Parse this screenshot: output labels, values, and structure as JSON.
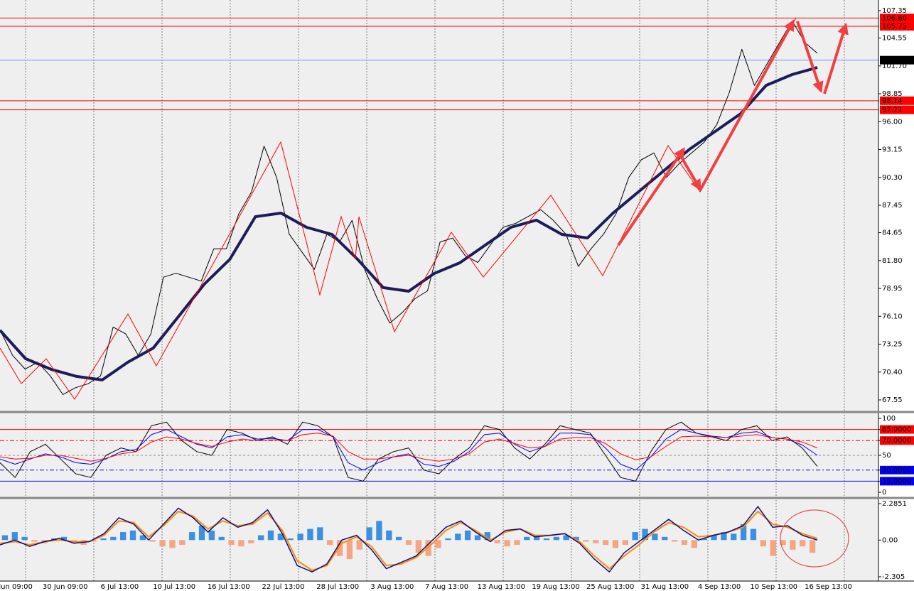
{
  "chart_data": [
    {
      "type": "line",
      "ylim": [
        66.46,
        108.44
      ],
      "yticks": [
        107.35,
        104.55,
        {
          "value": 101.7,
          "label": "101.70"
        },
        98.85,
        {
          "value": 96,
          "label": "96.00"
        },
        93.15,
        {
          "value": 90.3,
          "label": "90.30"
        },
        87.45,
        84.65,
        {
          "value": 81.8,
          "label": "81.80"
        },
        78.95,
        {
          "value": 76.1,
          "label": "76.10"
        },
        73.25,
        {
          "value": 70.4,
          "label": "70.40"
        },
        67.55
      ],
      "levels": [
        {
          "value": 106.6,
          "label": "106.60",
          "color": "#ff0000",
          "box": "#ff0000"
        },
        {
          "value": 105.75,
          "label": "105.75",
          "color": "#ff0000",
          "box": "#ff0000"
        },
        {
          "value": 102.29,
          "label": "102.29",
          "color": "#6b8cff",
          "box": "#000000"
        },
        {
          "value": 98.14,
          "label": "98.14",
          "color": "#ff0000",
          "box": "#ff0000"
        },
        {
          "value": 97.21,
          "label": "97.21",
          "color": "#ff0000",
          "box": "#ff0000"
        }
      ],
      "series": [
        {
          "color": "#000000",
          "width": 1,
          "values": [
            74.7,
            72.1,
            70.7,
            71.4,
            70.0,
            68.1,
            68.8,
            69.2,
            70.0,
            75.0,
            74.3,
            72.1,
            74.3,
            80.1,
            80.5,
            80.1,
            79.7,
            83.0,
            83.0,
            86.6,
            88.8,
            93.5,
            90.3,
            84.5,
            82.7,
            80.9,
            84.5,
            83.7,
            85.9,
            80.9,
            77.9,
            75.4,
            76.5,
            77.9,
            78.7,
            83.7,
            84.1,
            82.3,
            81.6,
            83.4,
            85.2,
            85.6,
            86.3,
            87.0,
            85.9,
            84.5,
            81.2,
            83.0,
            84.5,
            86.6,
            90.3,
            92.1,
            92.8,
            90.3,
            91.7,
            92.8,
            93.9,
            95.7,
            99.0,
            103.4,
            99.7,
            101.9,
            104.1,
            106.3,
            104.1,
            103.0
          ]
        },
        {
          "color": "#1c1c5a",
          "width": 4,
          "values": [
            74.67,
            71.77,
            70.68,
            69.95,
            69.59,
            71.4,
            72.85,
            76.12,
            79.39,
            81.93,
            86.29,
            86.65,
            85.2,
            84.47,
            81.93,
            79.03,
            78.66,
            80.48,
            81.57,
            83.38,
            85.2,
            85.93,
            84.47,
            84.11,
            86.65,
            88.83,
            91.01,
            93.19,
            95.0,
            96.82,
            99.72,
            100.81,
            101.54
          ]
        }
      ]
    },
    {
      "type": "line",
      "ylim": [
        -6.7,
        106.7
      ],
      "yticks": [
        100,
        {
          "value": 85,
          "label": "85.0000"
        },
        {
          "value": 70,
          "label": "70.0000"
        },
        50,
        {
          "value": 30,
          "label": "30.0000"
        },
        {
          "value": 15,
          "label": "15.0000"
        },
        0
      ],
      "levels": [
        {
          "value": 85,
          "color": "#ff0000",
          "dash": "none",
          "box": "#ff0000"
        },
        {
          "value": 70,
          "color": "#ff0000",
          "dash": "6 3 2 3",
          "box": "#ff0000"
        },
        {
          "value": 50,
          "color": "#888888",
          "dash": "3 3"
        },
        {
          "value": 30,
          "color": "#0000ff",
          "dash": "6 3 2 3",
          "box": "#0000ff"
        },
        {
          "value": 15,
          "color": "#0000ff",
          "dash": "none",
          "box": "#0000ff"
        }
      ],
      "series": [
        {
          "color": "#000000",
          "width": 1,
          "values": [
            40,
            20,
            55,
            65,
            45,
            25,
            20,
            50,
            60,
            55,
            90,
            95,
            70,
            55,
            50,
            85,
            80,
            70,
            75,
            65,
            95,
            90,
            75,
            20,
            15,
            45,
            55,
            60,
            30,
            25,
            45,
            60,
            90,
            85,
            60,
            45,
            65,
            90,
            85,
            80,
            50,
            20,
            15,
            55,
            85,
            95,
            80,
            75,
            70,
            85,
            90,
            70,
            75,
            60,
            35
          ]
        },
        {
          "color": "#0000ff",
          "width": 1,
          "values": [
            45,
            38,
            45,
            52,
            48,
            40,
            38,
            45,
            55,
            58,
            78,
            85,
            75,
            65,
            60,
            75,
            78,
            72,
            73,
            70,
            85,
            85,
            75,
            40,
            30,
            40,
            48,
            52,
            38,
            35,
            42,
            55,
            78,
            80,
            65,
            55,
            62,
            80,
            80,
            78,
            60,
            38,
            30,
            48,
            72,
            85,
            80,
            76,
            74,
            80,
            82,
            74,
            72,
            64,
            50
          ]
        },
        {
          "color": "#ff0000",
          "width": 1,
          "values": [
            48,
            45,
            46,
            50,
            50,
            46,
            42,
            46,
            52,
            55,
            68,
            75,
            72,
            66,
            62,
            68,
            72,
            70,
            71,
            70,
            78,
            80,
            76,
            55,
            45,
            45,
            48,
            50,
            45,
            42,
            45,
            52,
            68,
            72,
            66,
            60,
            62,
            72,
            74,
            74,
            66,
            52,
            44,
            48,
            62,
            75,
            76,
            75,
            74,
            76,
            78,
            74,
            72,
            68,
            60
          ]
        }
      ]
    },
    {
      "type": "bar",
      "ylim": [
        -2.574,
        2.599
      ],
      "yticks": [
        2.2851,
        {
          "value": 0,
          "label": "0.00"
        },
        -2.305
      ],
      "color": "#3d8fe0",
      "negative_color": "#f4a582",
      "values": [
        0.3,
        0.5,
        0.2,
        -0.1,
        -0.2,
        0.1,
        0.2,
        -0.2,
        -0.3,
        -0.1,
        0.1,
        0.2,
        0.5,
        0.6,
        0.3,
        -0.1,
        -0.4,
        -0.5,
        -0.3,
        0.5,
        0.9,
        0.6,
        0.2,
        -0.3,
        -0.4,
        -0.2,
        0.3,
        0.6,
        0.4,
        0.1,
        0.4,
        0.7,
        0.8,
        -0.3,
        -1.0,
        -1.2,
        -0.6,
        0.8,
        1.2,
        0.6,
        0.2,
        -0.3,
        -0.8,
        -1.0,
        -0.5,
        0.1,
        0.4,
        0.6,
        0.3,
        0.5,
        -0.2,
        -0.4,
        -0.3,
        0.2,
        0.3,
        0.1,
        0.2,
        0.3,
        0.2,
        -0.1,
        -0.2,
        -0.3,
        -0.5,
        -0.3,
        0.5,
        0.7,
        0.4,
        0.2,
        -0.1,
        -0.3,
        -0.5,
        0.1,
        0.3,
        0.5,
        0.4,
        1.0,
        0.7,
        -0.4,
        -1.0,
        -0.3,
        -0.6,
        -0.4,
        -0.8
      ],
      "series": [
        {
          "color": "#ff8c00",
          "width": 2,
          "values": [
            -0.2,
            -0.1,
            -0.3,
            -0.1,
            0.0,
            -0.1,
            -0.1,
            0.3,
            1.2,
            1.1,
            0.2,
            0.9,
            1.8,
            1.5,
            0.7,
            1.2,
            0.9,
            1.0,
            1.7,
            0.6,
            -1.3,
            -1.9,
            -1.6,
            -0.2,
            0.2,
            -0.4,
            -1.6,
            -1.5,
            -1.1,
            -0.3,
            0.6,
            1.1,
            0.6,
            0.0,
            0.5,
            0.7,
            0.3,
            0.3,
            0.4,
            -0.1,
            -1.0,
            -1.8,
            -1.0,
            -0.3,
            0.5,
            1.1,
            0.8,
            0.2,
            0.3,
            0.5,
            0.8,
            1.8,
            1.0,
            0.8,
            0.4,
            0.1
          ]
        },
        {
          "color": "#0a0a8c",
          "width": 1.5,
          "values": [
            -0.3,
            0.0,
            -0.4,
            -0.1,
            0.1,
            -0.2,
            -0.1,
            0.4,
            1.4,
            1.0,
            0.0,
            1.0,
            2.0,
            1.4,
            0.5,
            1.4,
            0.8,
            1.1,
            1.9,
            0.4,
            -1.6,
            -2.0,
            -1.5,
            0.0,
            0.3,
            -0.6,
            -1.8,
            -1.4,
            -1.0,
            -0.1,
            0.8,
            1.2,
            0.5,
            -0.1,
            0.6,
            0.7,
            0.2,
            0.3,
            0.4,
            -0.2,
            -1.2,
            -2.0,
            -0.8,
            -0.1,
            0.6,
            1.3,
            0.6,
            0.0,
            0.3,
            0.5,
            0.9,
            2.1,
            0.8,
            0.9,
            0.3,
            0.0
          ]
        }
      ],
      "time_labels": [
        "Jun 09:00",
        "30 Jun 09:00",
        "6 Jul 13:00",
        "10 Jul 13:00",
        "16 Jul 13:00",
        "22 Jul 13:00",
        "28 Jul 13:00",
        "3 Aug 13:00",
        "7 Aug 13:00",
        "13 Aug 13:00",
        "19 Aug 13:00",
        "25 Aug 13:00",
        "31 Aug 13:00",
        "4 Sep 13:00",
        "10 Sep 13:00",
        "16 Sep 13:00"
      ]
    }
  ]
}
